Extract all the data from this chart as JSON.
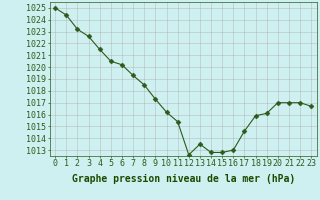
{
  "x": [
    0,
    1,
    2,
    3,
    4,
    5,
    6,
    7,
    8,
    9,
    10,
    11,
    12,
    13,
    14,
    15,
    16,
    17,
    18,
    19,
    20,
    21,
    22,
    23
  ],
  "y": [
    1025.0,
    1024.4,
    1023.2,
    1022.6,
    1021.5,
    1020.5,
    1020.2,
    1019.3,
    1018.5,
    1017.3,
    1016.2,
    1015.4,
    1012.6,
    1013.5,
    1012.8,
    1012.8,
    1013.0,
    1014.6,
    1015.9,
    1016.1,
    1017.0,
    1017.0,
    1017.0,
    1016.7
  ],
  "line_color": "#2d5a1b",
  "marker": "D",
  "marker_size": 2.5,
  "bg_color": "#cff0f0",
  "grid_color": "#aaaaaa",
  "xlabel": "Graphe pression niveau de la mer (hPa)",
  "xlabel_fontsize": 7,
  "tick_fontsize": 6,
  "ylim": [
    1012.5,
    1025.5
  ],
  "xlim": [
    -0.5,
    23.5
  ],
  "yticks": [
    1013,
    1014,
    1015,
    1016,
    1017,
    1018,
    1019,
    1020,
    1021,
    1022,
    1023,
    1024,
    1025
  ],
  "xticks": [
    0,
    1,
    2,
    3,
    4,
    5,
    6,
    7,
    8,
    9,
    10,
    11,
    12,
    13,
    14,
    15,
    16,
    17,
    18,
    19,
    20,
    21,
    22,
    23
  ]
}
